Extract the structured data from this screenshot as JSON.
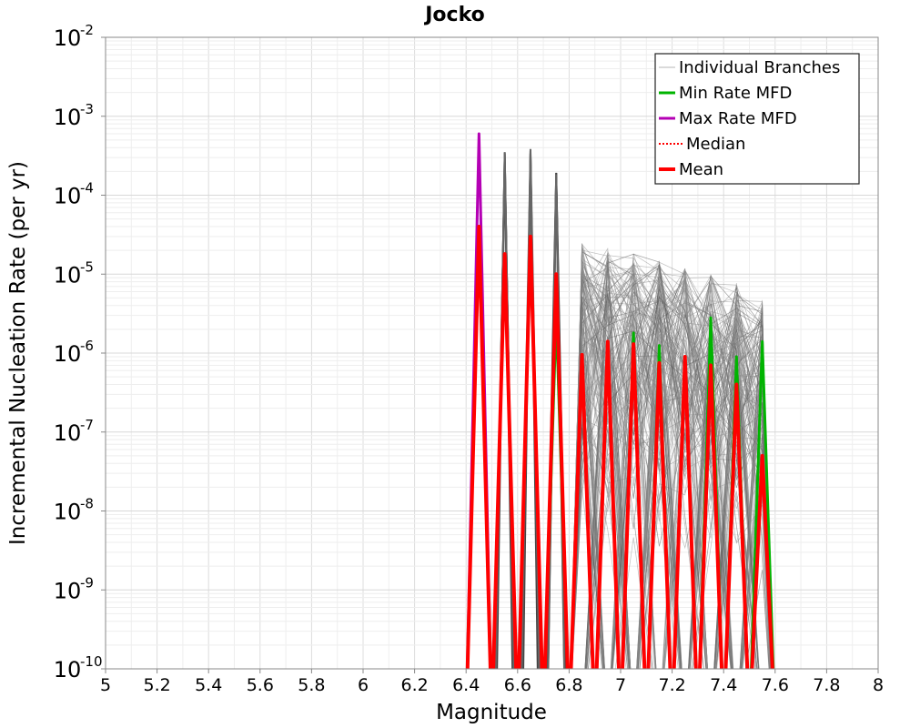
{
  "chart_data": {
    "type": "line",
    "title": "Jocko",
    "xlabel": "Magnitude",
    "ylabel": "Incremental Nucleation Rate (per yr)",
    "xlim": [
      5,
      8
    ],
    "ylim": [
      1e-10,
      0.01
    ],
    "yscale": "log",
    "grid": true,
    "legend_position": "top-right",
    "x_ticks": [
      "5",
      "5.2",
      "5.4",
      "5.6",
      "5.8",
      "6",
      "6.2",
      "6.4",
      "6.6",
      "6.8",
      "7",
      "7.2",
      "7.4",
      "7.6",
      "7.8",
      "8"
    ],
    "y_ticks": [
      {
        "base": "10",
        "exp": "-10"
      },
      {
        "base": "10",
        "exp": "-9"
      },
      {
        "base": "10",
        "exp": "-8"
      },
      {
        "base": "10",
        "exp": "-7"
      },
      {
        "base": "10",
        "exp": "-6"
      },
      {
        "base": "10",
        "exp": "-5"
      },
      {
        "base": "10",
        "exp": "-4"
      },
      {
        "base": "10",
        "exp": "-3"
      },
      {
        "base": "10",
        "exp": "-2"
      }
    ],
    "legend": [
      {
        "label": "Individual Branches",
        "color": "#b4b4b4",
        "style": "thin"
      },
      {
        "label": "Min Rate MFD",
        "color": "#00b400",
        "style": "solid"
      },
      {
        "label": "Max Rate MFD",
        "color": "#b400b4",
        "style": "solid"
      },
      {
        "label": "Median",
        "color": "#ff0000",
        "style": "dotted"
      },
      {
        "label": "Mean",
        "color": "#ff0000",
        "style": "thick"
      }
    ],
    "series": [
      {
        "name": "Min Rate MFD",
        "color": "#00b400",
        "x": [
          6.75,
          7.05,
          7.15,
          7.35,
          7.45,
          7.55
        ],
        "y": [
          3e-06,
          1.8e-06,
          1.25e-06,
          2.8e-06,
          9e-07,
          1.4e-06
        ]
      },
      {
        "name": "Max Rate MFD",
        "color": "#b400b4",
        "x": [
          6.45
        ],
        "y": [
          0.0006
        ]
      },
      {
        "name": "Median",
        "color": "#ff0000",
        "x": [
          6.95,
          7.05,
          7.15,
          7.25,
          7.35,
          7.45
        ],
        "y": [
          7e-07,
          9e-07,
          4.2e-07,
          5e-07,
          4.8e-07,
          2e-07
        ]
      },
      {
        "name": "Mean",
        "color": "#ff0000",
        "x": [
          6.45,
          6.55,
          6.65,
          6.75,
          6.85,
          6.95,
          7.05,
          7.15,
          7.25,
          7.35,
          7.45,
          7.55
        ],
        "y": [
          4e-05,
          1.8e-05,
          3e-05,
          1e-05,
          9.5e-07,
          1.4e-06,
          1.3e-06,
          7.5e-07,
          9e-07,
          7e-07,
          4e-07,
          5e-08
        ]
      }
    ],
    "individual_branch_peaks": [
      {
        "x": 6.55,
        "y_max": 0.0004
      },
      {
        "x": 6.65,
        "y_max": 0.0004
      },
      {
        "x": 6.75,
        "y_max": 0.0002
      },
      {
        "x": 6.85,
        "y_max": 2.5e-05
      },
      {
        "x": 6.95,
        "y_max": 2.2e-05
      },
      {
        "x": 7.05,
        "y_max": 2e-05
      },
      {
        "x": 7.15,
        "y_max": 1.5e-05
      },
      {
        "x": 7.25,
        "y_max": 1.2e-05
      },
      {
        "x": 7.35,
        "y_max": 1e-05
      },
      {
        "x": 7.45,
        "y_max": 8e-06
      },
      {
        "x": 7.55,
        "y_max": 5e-06
      }
    ]
  }
}
